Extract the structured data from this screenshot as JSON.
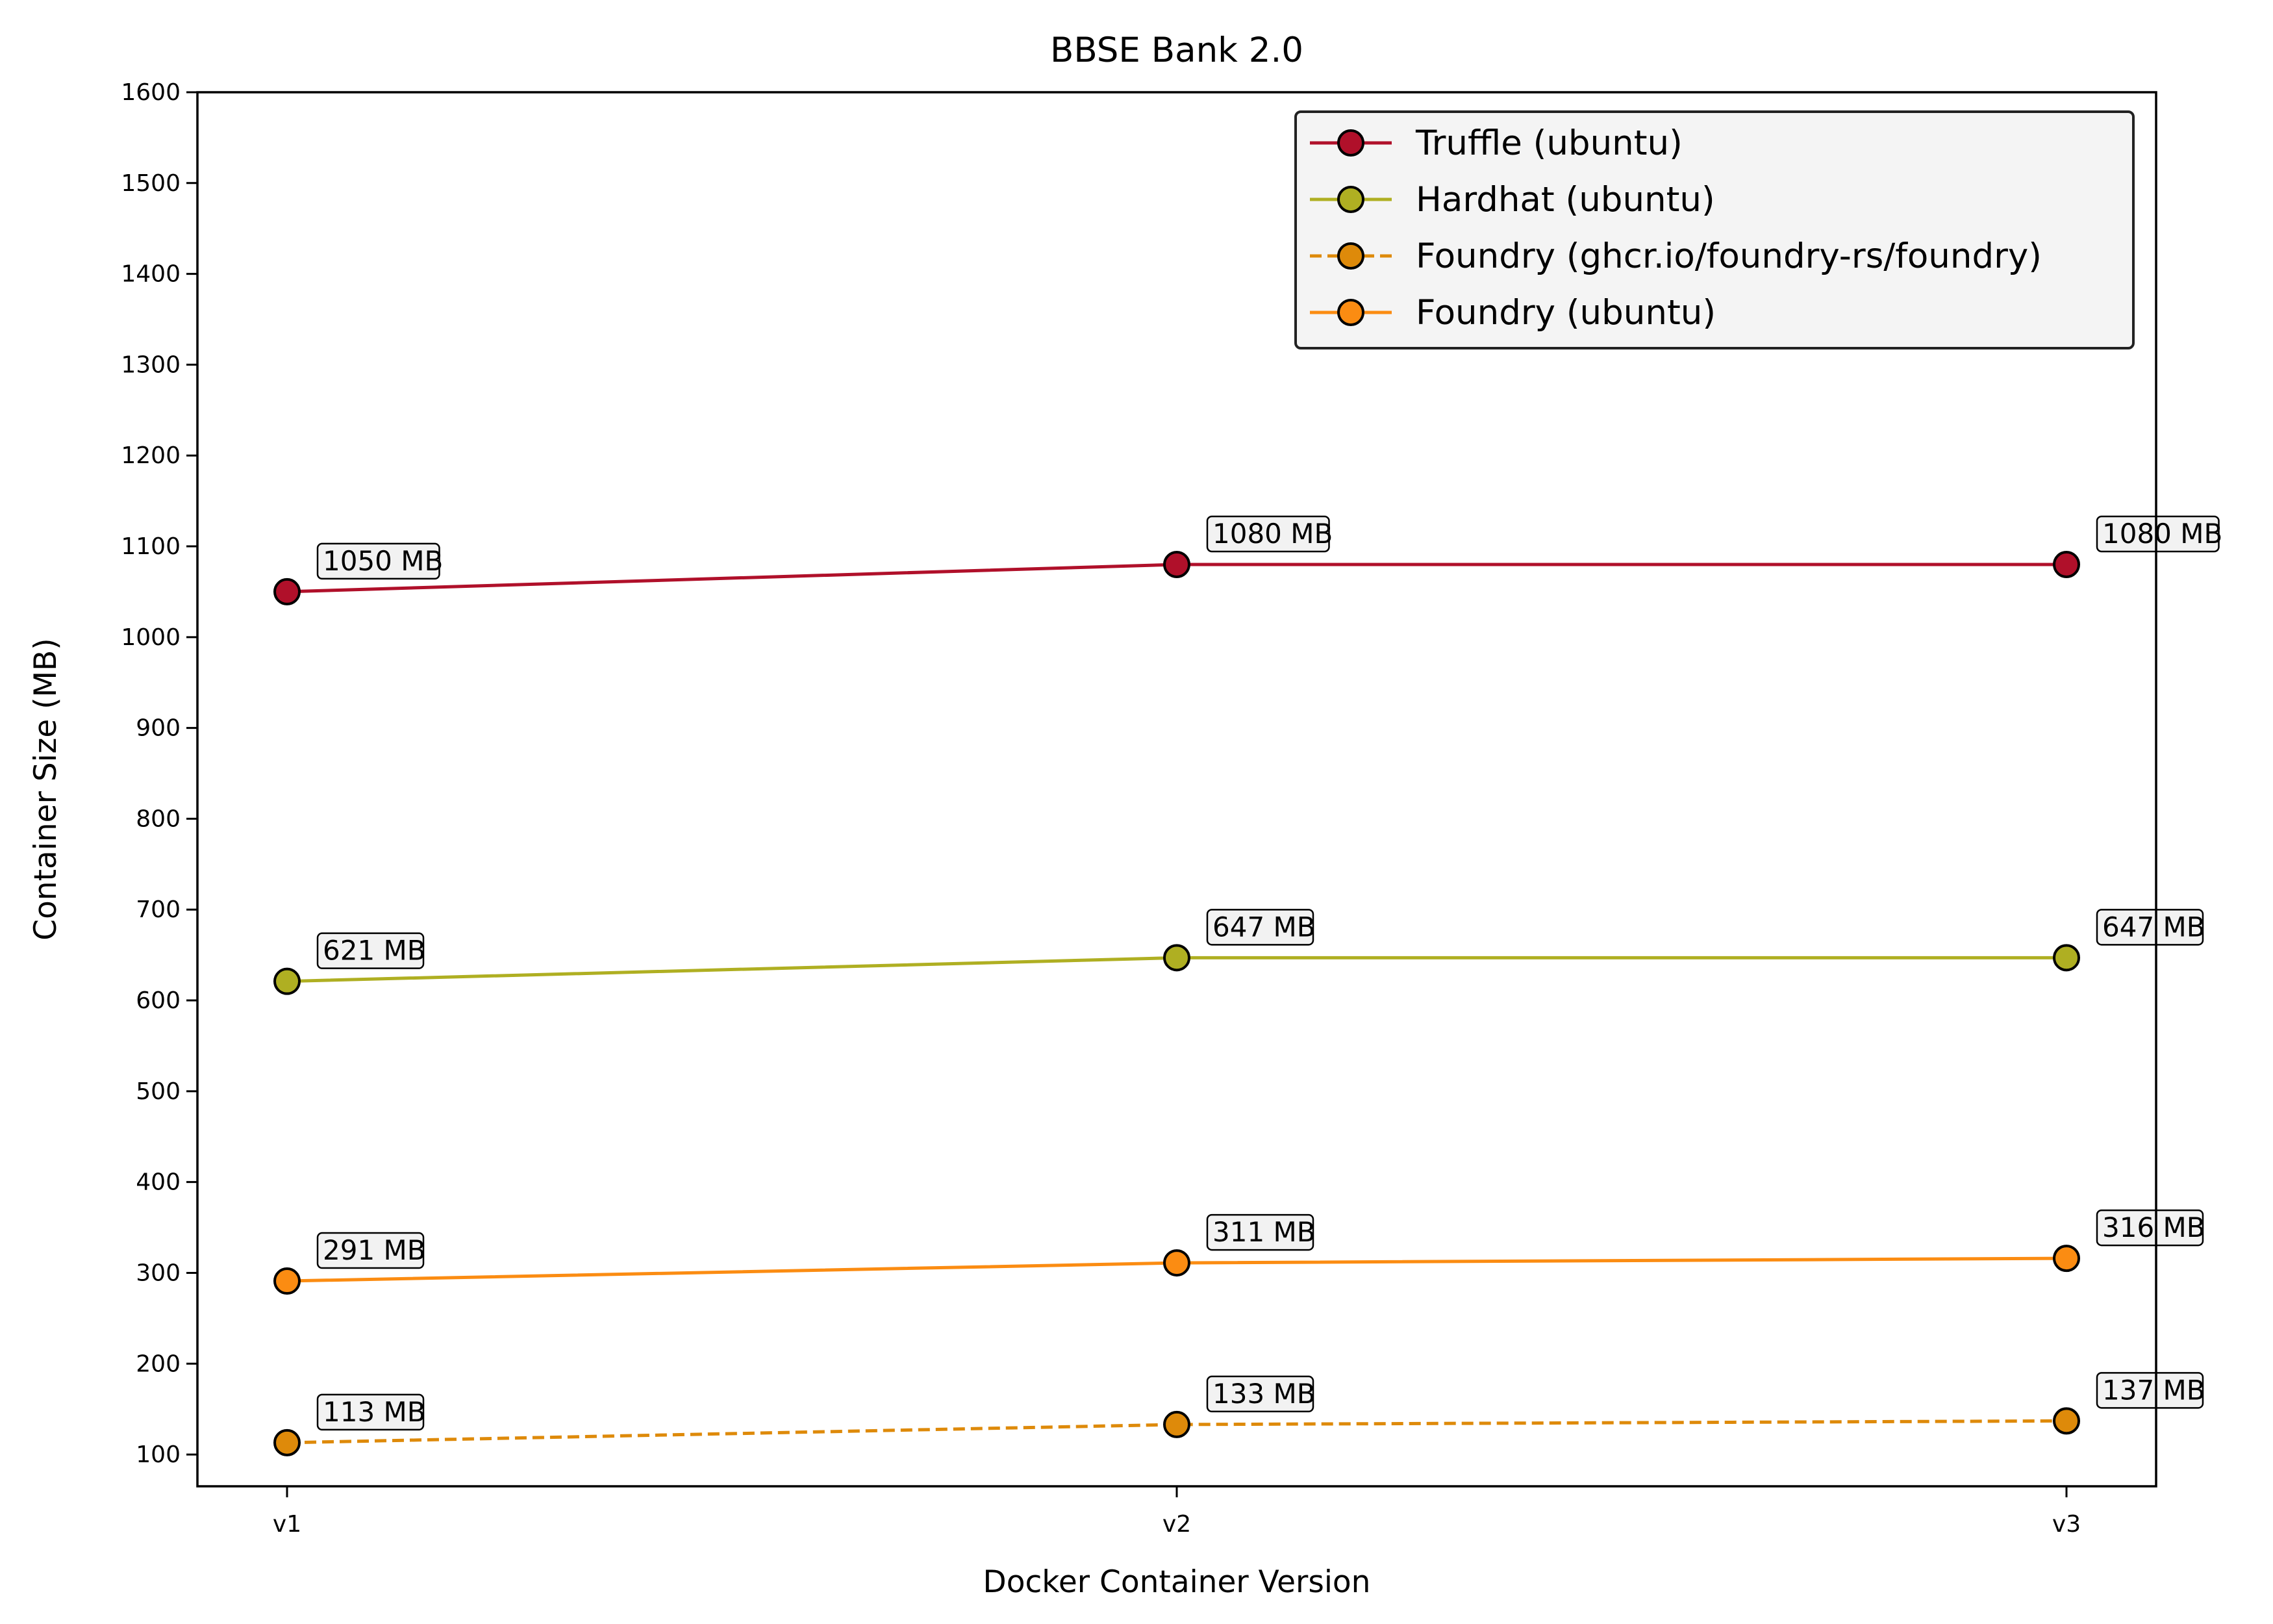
{
  "chart_data": {
    "type": "line",
    "title": "BBSE Bank 2.0",
    "xlabel": "Docker Container Version",
    "ylabel": "Container Size (MB)",
    "categories": [
      "v1",
      "v2",
      "v3"
    ],
    "ylim": [
      65,
      1600
    ],
    "yticks": [
      100,
      200,
      300,
      400,
      500,
      600,
      700,
      800,
      900,
      1000,
      1100,
      1200,
      1300,
      1400,
      1500,
      1600
    ],
    "grid": false,
    "legend_position": "top-right",
    "series": [
      {
        "name": "Truffle (ubuntu)",
        "values": [
          1050,
          1080,
          1080
        ],
        "labels": [
          "1050 MB",
          "1080 MB",
          "1080 MB"
        ],
        "color": "#b0102a",
        "dashed": false
      },
      {
        "name": "Hardhat (ubuntu)",
        "values": [
          621,
          647,
          647
        ],
        "labels": [
          "621 MB",
          "647 MB",
          "647 MB"
        ],
        "color": "#afaf22",
        "dashed": false
      },
      {
        "name": "Foundry (ghcr.io/foundry-rs/foundry)",
        "values": [
          113,
          133,
          137
        ],
        "labels": [
          "113 MB",
          "133 MB",
          "137 MB"
        ],
        "color": "#de8a0a",
        "dashed": true
      },
      {
        "name": "Foundry (ubuntu)",
        "values": [
          291,
          311,
          316
        ],
        "labels": [
          "291 MB",
          "311 MB",
          "316 MB"
        ],
        "color": "#fb8c12",
        "dashed": false
      }
    ]
  }
}
